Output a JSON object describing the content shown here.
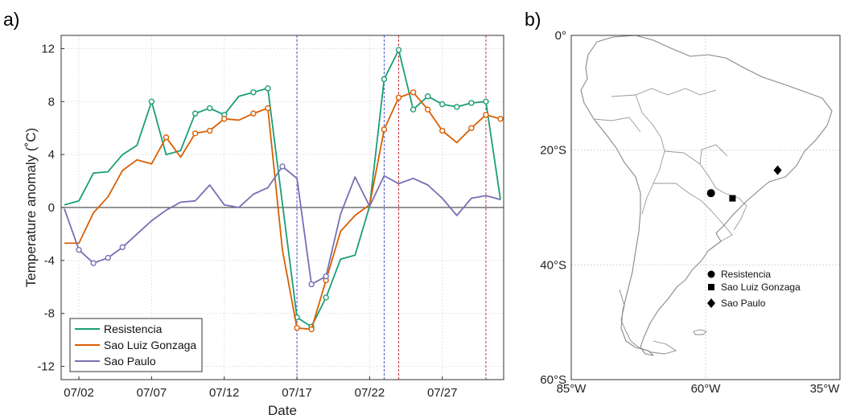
{
  "panel_a_label": "a)",
  "panel_b_label": "b)",
  "chart_data": [
    {
      "type": "line",
      "xlabel": "Date",
      "ylabel": "Temperature anomaly (˚C)",
      "x_start_date": "2019-07-01",
      "x_end_date": "2019-07-31",
      "xticks": [
        "07/02",
        "07/07",
        "07/12",
        "07/17",
        "07/22",
        "07/27"
      ],
      "ylim": [
        -13,
        13
      ],
      "yticks": [
        "-12",
        "-8",
        "-4",
        "0",
        "4",
        "8",
        "12"
      ],
      "ytick_values": [
        -12,
        -8,
        -4,
        0,
        4,
        8,
        12
      ],
      "grid": true,
      "legend_position": "bottom-left",
      "x": [
        "07/01",
        "07/02",
        "07/03",
        "07/04",
        "07/05",
        "07/06",
        "07/07",
        "07/08",
        "07/09",
        "07/10",
        "07/11",
        "07/12",
        "07/13",
        "07/14",
        "07/15",
        "07/16",
        "07/17",
        "07/18",
        "07/19",
        "07/20",
        "07/21",
        "07/22",
        "07/23",
        "07/24",
        "07/25",
        "07/26",
        "07/27",
        "07/28",
        "07/29",
        "07/30",
        "07/31"
      ],
      "series": [
        {
          "name": "Resistencia",
          "color": "#1b9e77",
          "values": [
            0.2,
            0.5,
            2.6,
            2.7,
            4.0,
            4.7,
            8.0,
            4.0,
            4.3,
            7.1,
            7.5,
            7.0,
            8.4,
            8.7,
            9.0,
            0.3,
            -8.3,
            -9.0,
            -6.8,
            -3.9,
            -3.6,
            0.1,
            9.7,
            11.9,
            7.4,
            8.4,
            7.8,
            7.6,
            7.9,
            8.0,
            0.6
          ],
          "markers": [
            false,
            false,
            false,
            false,
            false,
            false,
            true,
            false,
            false,
            true,
            true,
            true,
            false,
            true,
            true,
            false,
            true,
            true,
            true,
            false,
            false,
            false,
            true,
            true,
            true,
            true,
            true,
            true,
            true,
            true,
            false
          ]
        },
        {
          "name": "Sao Luiz Gonzaga",
          "color": "#d95f02",
          "values": [
            -2.7,
            -2.7,
            -0.4,
            0.8,
            2.8,
            3.6,
            3.3,
            5.3,
            3.8,
            5.6,
            5.8,
            6.7,
            6.6,
            7.1,
            7.5,
            -3.2,
            -9.1,
            -9.2,
            -5.5,
            -1.8,
            -0.6,
            0.2,
            5.9,
            8.3,
            8.7,
            7.4,
            5.8,
            4.9,
            6.0,
            7.0,
            6.7
          ],
          "markers": [
            false,
            false,
            false,
            false,
            false,
            false,
            false,
            true,
            false,
            true,
            true,
            true,
            false,
            true,
            true,
            false,
            true,
            true,
            true,
            false,
            false,
            false,
            true,
            true,
            true,
            true,
            true,
            false,
            true,
            true,
            true
          ]
        },
        {
          "name": "Sao Paulo",
          "color": "#7570b3",
          "values": [
            -0.1,
            -3.2,
            -4.2,
            -3.8,
            -3.0,
            -2.0,
            -1.0,
            -0.2,
            0.4,
            0.5,
            1.7,
            0.2,
            0.0,
            1.0,
            1.5,
            3.1,
            2.2,
            -5.8,
            -5.2,
            -0.5,
            2.3,
            0.1,
            2.4,
            1.8,
            2.2,
            1.7,
            0.7,
            -0.6,
            0.7,
            0.9,
            0.6
          ],
          "markers": [
            false,
            true,
            true,
            true,
            true,
            false,
            false,
            false,
            false,
            false,
            false,
            false,
            false,
            false,
            false,
            true,
            false,
            true,
            true,
            false,
            false,
            false,
            false,
            false,
            false,
            false,
            false,
            false,
            false,
            false,
            false
          ]
        }
      ],
      "vertical_lines": [
        {
          "x": "07/17",
          "color": "#4a52c9"
        },
        {
          "x": "07/23",
          "color": "#4a52c9"
        },
        {
          "x": "07/24",
          "color": "#c9303a"
        },
        {
          "x": "07/30",
          "color": "#c9303a"
        }
      ]
    },
    {
      "type": "map",
      "region": "South America",
      "lon_ticks": [
        "85°W",
        "60°W",
        "35°W"
      ],
      "lat_ticks": [
        "0°",
        "20°S",
        "40°S",
        "60°S"
      ],
      "lon_range": [
        -85,
        -35
      ],
      "lat_range": [
        -60,
        0
      ],
      "grid": true,
      "stations": [
        {
          "name": "Resistencia",
          "marker": "circle",
          "lon": -59.0,
          "lat": -27.5
        },
        {
          "name": "Sao Luiz Gonzaga",
          "marker": "square",
          "lon": -55.0,
          "lat": -28.4
        },
        {
          "name": "Sao Paulo",
          "marker": "diamond",
          "lon": -46.6,
          "lat": -23.5
        }
      ]
    }
  ]
}
